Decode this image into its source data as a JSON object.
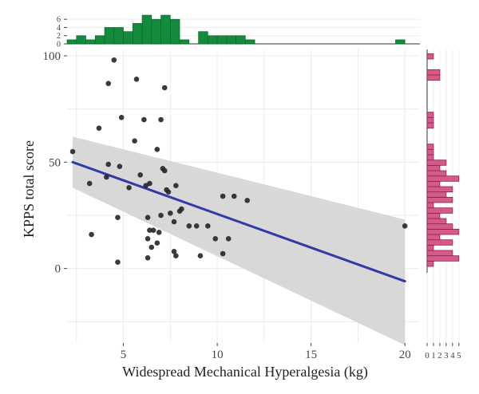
{
  "chart_data": {
    "type": "scatter",
    "xlabel": "Widespread Mechanical Hyperalgesia (kg)",
    "ylabel": "KPPS total score",
    "xlim": [
      2,
      20.8
    ],
    "ylim": [
      -35,
      103
    ],
    "x_ticks": [
      5,
      10,
      15,
      20
    ],
    "y_ticks": [
      0,
      50,
      100
    ],
    "grid": true,
    "points": [
      {
        "x": 2.3,
        "y": 55
      },
      {
        "x": 3.2,
        "y": 40
      },
      {
        "x": 3.3,
        "y": 16
      },
      {
        "x": 3.7,
        "y": 66
      },
      {
        "x": 4.1,
        "y": 43
      },
      {
        "x": 4.2,
        "y": 49
      },
      {
        "x": 4.2,
        "y": 87
      },
      {
        "x": 4.5,
        "y": 98
      },
      {
        "x": 4.7,
        "y": 3
      },
      {
        "x": 4.7,
        "y": 24
      },
      {
        "x": 4.8,
        "y": 48
      },
      {
        "x": 4.9,
        "y": 71
      },
      {
        "x": 5.3,
        "y": 38
      },
      {
        "x": 5.6,
        "y": 60
      },
      {
        "x": 5.7,
        "y": 89
      },
      {
        "x": 5.9,
        "y": 44
      },
      {
        "x": 6.1,
        "y": 70
      },
      {
        "x": 6.2,
        "y": 39
      },
      {
        "x": 6.3,
        "y": 5
      },
      {
        "x": 6.3,
        "y": 14
      },
      {
        "x": 6.3,
        "y": 24
      },
      {
        "x": 6.4,
        "y": 18
      },
      {
        "x": 6.4,
        "y": 40
      },
      {
        "x": 6.5,
        "y": 10
      },
      {
        "x": 6.6,
        "y": 18
      },
      {
        "x": 6.8,
        "y": 12
      },
      {
        "x": 6.8,
        "y": 56
      },
      {
        "x": 6.9,
        "y": 17
      },
      {
        "x": 7.0,
        "y": 25
      },
      {
        "x": 7.0,
        "y": 70
      },
      {
        "x": 7.1,
        "y": 47
      },
      {
        "x": 7.2,
        "y": 46
      },
      {
        "x": 7.2,
        "y": 85
      },
      {
        "x": 7.3,
        "y": 37
      },
      {
        "x": 7.4,
        "y": 36
      },
      {
        "x": 7.5,
        "y": 26
      },
      {
        "x": 7.7,
        "y": 22
      },
      {
        "x": 7.7,
        "y": 8
      },
      {
        "x": 7.8,
        "y": 6
      },
      {
        "x": 7.8,
        "y": 39
      },
      {
        "x": 8.0,
        "y": 27
      },
      {
        "x": 8.1,
        "y": 28
      },
      {
        "x": 8.5,
        "y": 20
      },
      {
        "x": 8.9,
        "y": 20
      },
      {
        "x": 9.1,
        "y": 6
      },
      {
        "x": 9.5,
        "y": 20
      },
      {
        "x": 9.9,
        "y": 14
      },
      {
        "x": 10.3,
        "y": 7
      },
      {
        "x": 10.3,
        "y": 34
      },
      {
        "x": 10.6,
        "y": 14
      },
      {
        "x": 10.9,
        "y": 34
      },
      {
        "x": 11.6,
        "y": 32
      },
      {
        "x": 20.0,
        "y": 20
      }
    ],
    "regression": {
      "x": [
        2.3,
        20.0
      ],
      "y": [
        50,
        -6
      ]
    },
    "confidence_band": {
      "x": [
        2.3,
        20.0
      ],
      "lower": [
        38,
        -36
      ],
      "upper": [
        62,
        23
      ]
    },
    "top_histogram": {
      "variable": "Widespread Mechanical Hyperalgesia (kg)",
      "y_ticks": [
        0,
        2,
        4,
        6
      ],
      "ylim": [
        0,
        7.2
      ],
      "bin_width": 0.5,
      "bins_start": [
        2.0,
        2.5,
        3.0,
        3.5,
        4.0,
        4.5,
        5.0,
        5.5,
        6.0,
        6.5,
        7.0,
        7.5,
        8.0,
        8.5,
        9.0,
        9.5,
        10.0,
        10.5,
        11.0,
        11.5,
        12.0,
        19.5
      ],
      "counts": [
        1,
        2,
        1,
        2,
        4,
        4,
        3,
        5,
        7,
        6,
        7,
        6,
        1,
        0,
        3,
        2,
        2,
        2,
        2,
        1,
        0,
        1
      ]
    },
    "right_histogram": {
      "variable": "KPPS total score",
      "x_ticks": [
        0,
        1,
        2,
        3,
        4,
        5
      ],
      "xlim": [
        0,
        5.4
      ],
      "bin_width": 2.5,
      "bins_start": [
        1,
        3.5,
        6,
        8.5,
        11,
        13.5,
        16,
        18.5,
        21,
        23.5,
        26,
        28.5,
        31,
        33.5,
        36,
        38.5,
        41,
        43.5,
        46,
        48.5,
        51,
        53.5,
        56,
        58.5,
        61,
        63.5,
        66,
        68.5,
        71,
        73.5,
        76,
        78.5,
        81,
        83.5,
        86,
        88.5,
        91,
        93.5,
        96,
        98.5
      ],
      "counts": [
        1,
        5,
        4,
        1,
        4,
        2,
        5,
        4,
        3,
        2,
        4,
        1,
        4,
        3,
        4,
        2,
        5,
        3,
        2,
        3,
        1,
        1,
        1,
        0,
        0,
        0,
        1,
        1,
        1,
        0,
        0,
        0,
        0,
        0,
        0,
        2,
        2,
        0,
        0,
        1
      ]
    },
    "colors": {
      "points": "#262626",
      "regression_line": "#2f3ca8",
      "confidence_band": "#d6d6d6",
      "top_hist_fill": "#138a3c",
      "right_hist_fill": "#d65a88",
      "grid": "#ebebeb"
    }
  }
}
